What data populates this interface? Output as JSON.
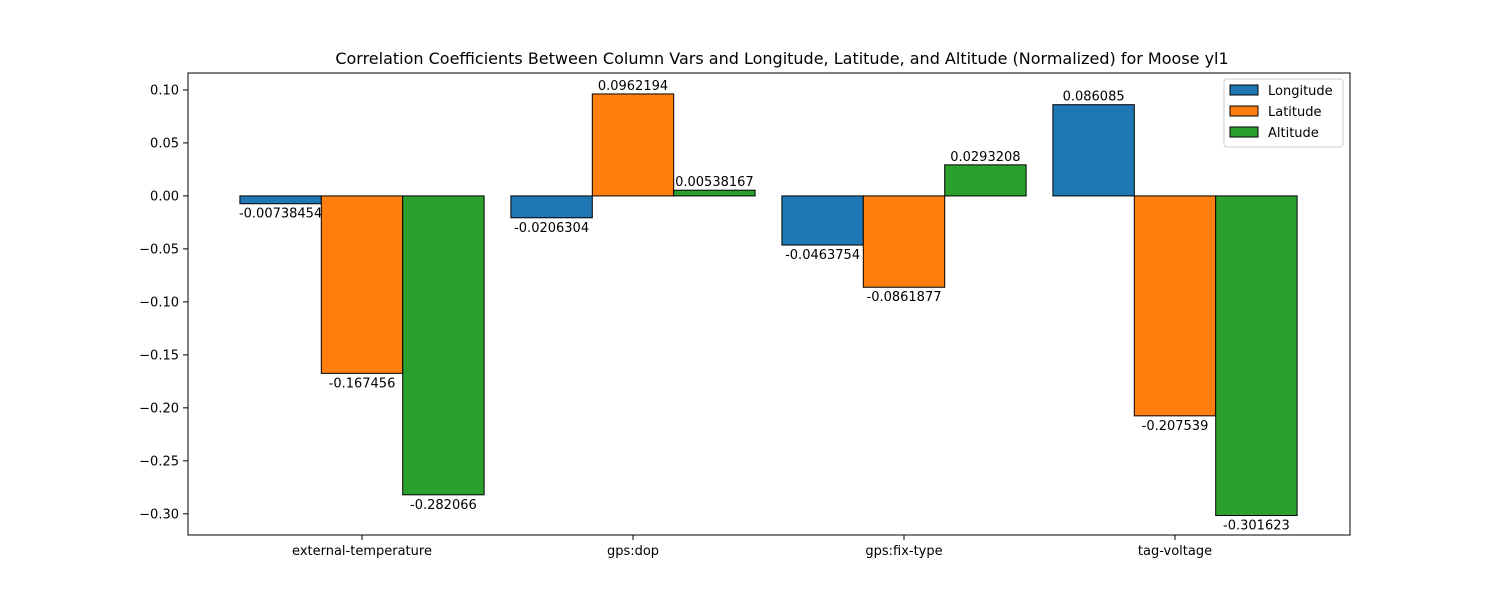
{
  "chart_data": {
    "type": "bar",
    "title": "Correlation Coefficients Between Column Vars and Longitude, Latitude, and Altitude (Normalized) for Moose yl1",
    "xlabel": "",
    "ylabel": "",
    "categories": [
      "external-temperature",
      "gps:dop",
      "gps:fix-type",
      "tag-voltage"
    ],
    "series": [
      {
        "name": "Longitude",
        "color": "#1f77b4",
        "values": [
          -0.00738454,
          -0.0206304,
          -0.0463754,
          0.086085
        ],
        "labels": [
          "-0.00738454",
          "-0.0206304",
          "-0.0463754",
          "0.086085"
        ]
      },
      {
        "name": "Latitude",
        "color": "#ff7f0e",
        "values": [
          -0.167456,
          0.0962194,
          -0.0861877,
          -0.207539
        ],
        "labels": [
          "-0.167456",
          "0.0962194",
          "-0.0861877",
          "-0.207539"
        ]
      },
      {
        "name": "Altitude",
        "color": "#2ca02c",
        "values": [
          -0.282066,
          0.00538167,
          0.0293208,
          -0.301623
        ],
        "labels": [
          "-0.282066",
          "0.00538167",
          "0.0293208",
          "-0.301623"
        ]
      }
    ],
    "ylim": [
      -0.32,
      0.116
    ],
    "yticks": [
      0.1,
      0.05,
      0.0,
      -0.05,
      -0.1,
      -0.15,
      -0.2,
      -0.25,
      -0.3
    ],
    "ytick_labels": [
      "0.10",
      "0.05",
      "0.00",
      "−0.05",
      "−0.10",
      "−0.15",
      "−0.20",
      "−0.25",
      "−0.30"
    ],
    "grid": false,
    "legend_position": "top-right"
  }
}
